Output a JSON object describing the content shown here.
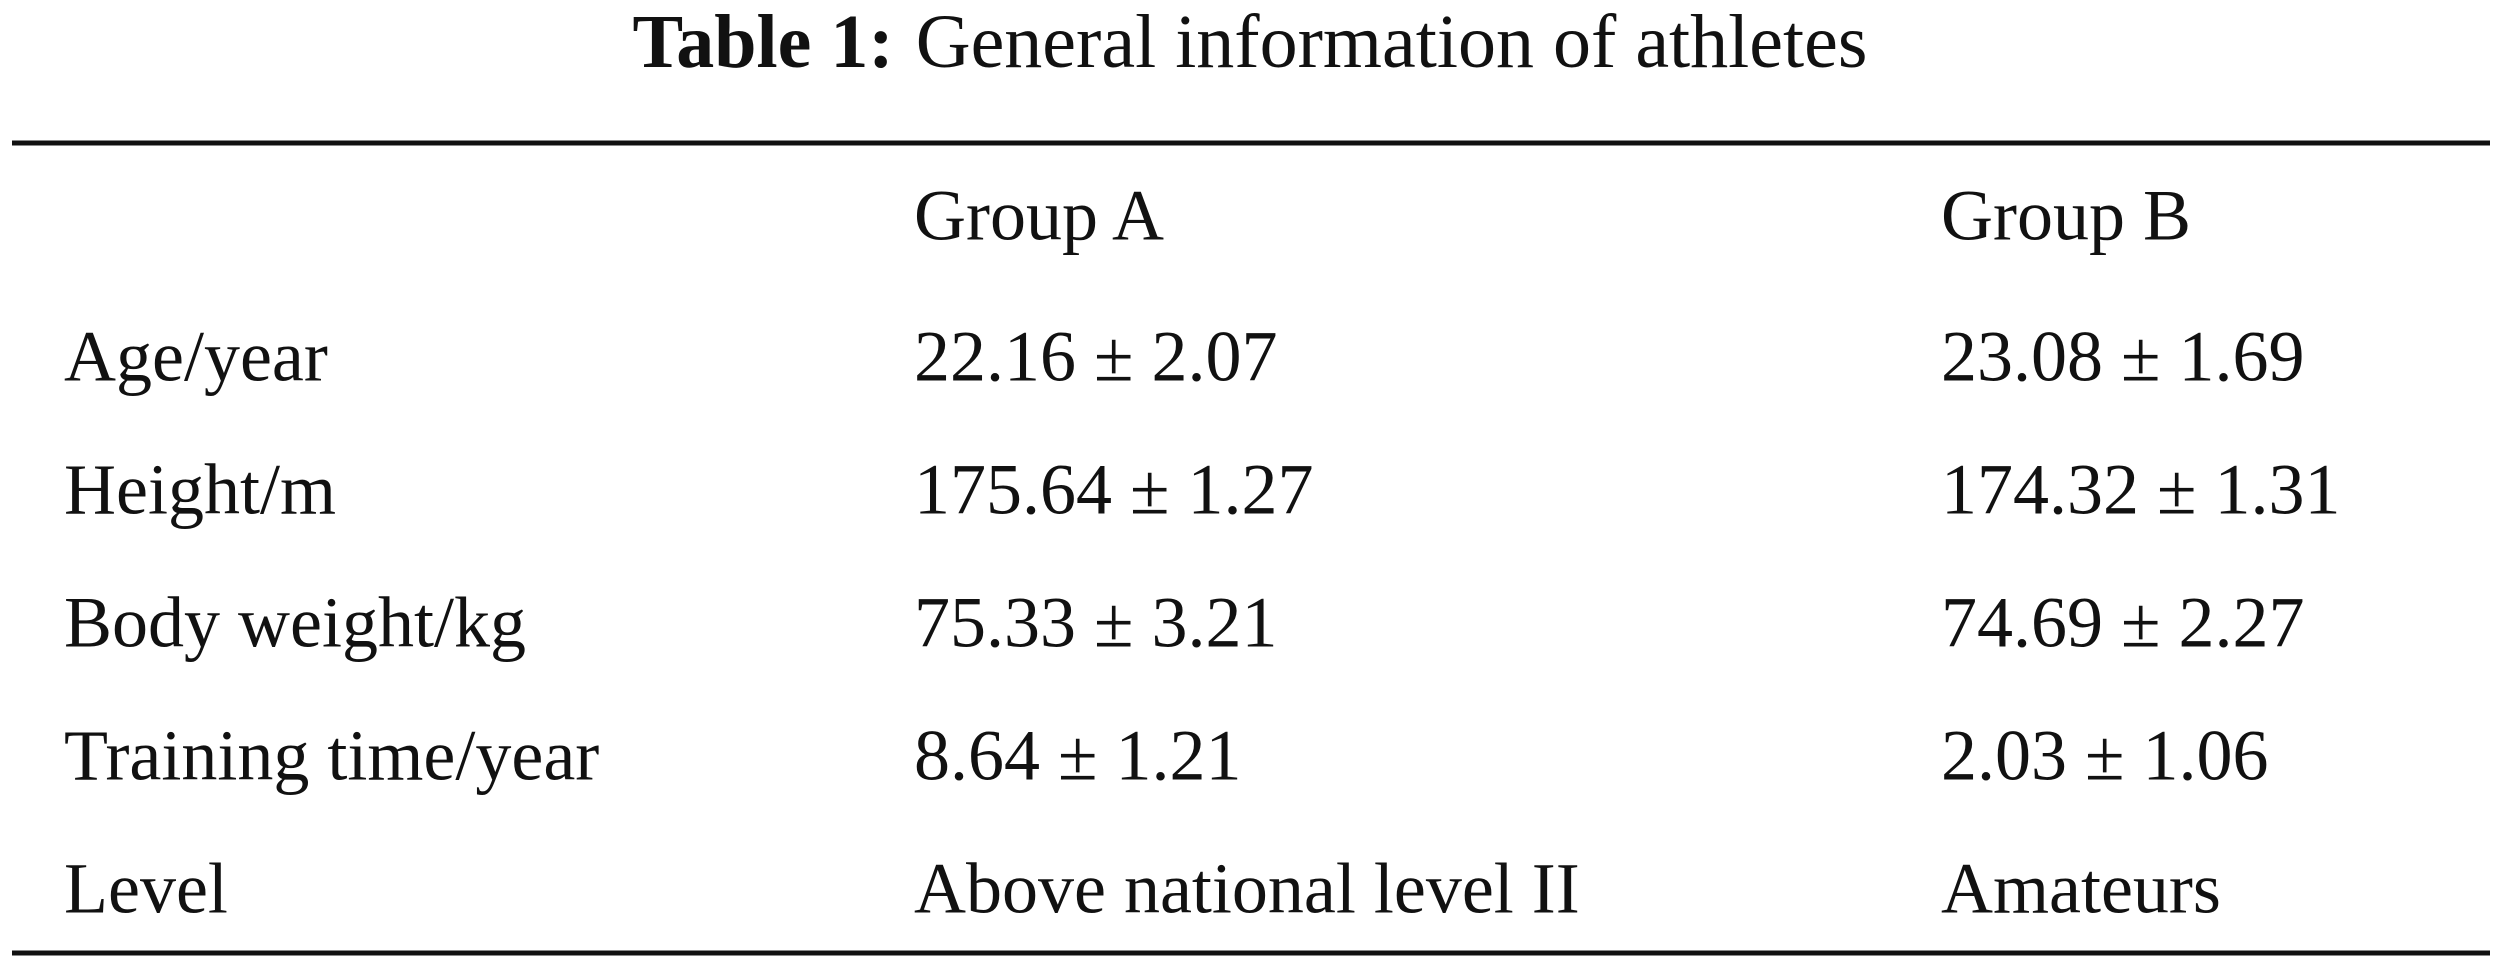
{
  "title": {
    "label": "Table 1:",
    "text": "General information of athletes"
  },
  "table": {
    "columns": [
      "Group A",
      "Group B"
    ],
    "rows": [
      [
        "Age/year",
        "22.16 ± 2.07",
        "23.08 ± 1.69"
      ],
      [
        "Height/m",
        "175.64 ± 1.27",
        "174.32 ± 1.31"
      ],
      [
        "Body weight/kg",
        "75.33 ± 3.21",
        "74.69 ± 2.27"
      ],
      [
        "Training time/year",
        "8.64 ± 1.21",
        "2.03 ± 1.06"
      ],
      [
        "Level",
        "Above national level II",
        "Amateurs"
      ]
    ]
  }
}
